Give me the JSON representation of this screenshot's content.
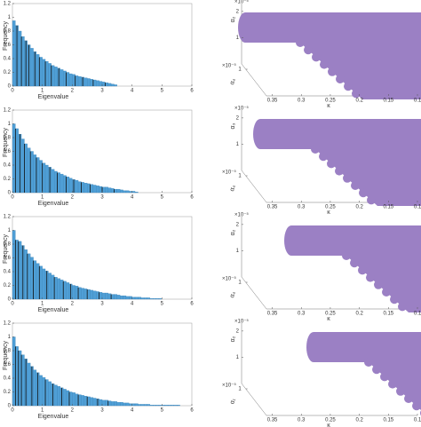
{
  "chart_data": [
    {
      "type": "histogram",
      "xlabel": "Eigenvalue",
      "ylabel": "Frequency",
      "color": "#4f9fd6",
      "bins": [
        0,
        0.1,
        0.2,
        0.3,
        0.4,
        0.5,
        0.6,
        0.7,
        0.8,
        0.9,
        1,
        1.1,
        1.2,
        1.3,
        1.4,
        1.5,
        1.6,
        1.7,
        1.8,
        1.9,
        2,
        2.1,
        2.2,
        2.3,
        2.4,
        2.5,
        2.6,
        2.7,
        2.8,
        2.9,
        3,
        3.1,
        3.2,
        3.3,
        3.4,
        3.5
      ],
      "values": [
        0.95,
        0.88,
        0.8,
        0.72,
        0.66,
        0.6,
        0.55,
        0.5,
        0.46,
        0.42,
        0.39,
        0.36,
        0.33,
        0.3,
        0.28,
        0.26,
        0.24,
        0.22,
        0.2,
        0.18,
        0.17,
        0.15,
        0.14,
        0.13,
        0.12,
        0.11,
        0.1,
        0.09,
        0.08,
        0.07,
        0.06,
        0.05,
        0.04,
        0.03,
        0.02
      ],
      "vlines": [
        0.15,
        0.3,
        0.45,
        0.55,
        0.75,
        0.9,
        1.1,
        1.3,
        1.55,
        1.8,
        2.1,
        2.35,
        2.7,
        3.1
      ],
      "xlim": [
        0,
        6
      ],
      "ylim": [
        0,
        1.2
      ],
      "xticks": [
        0,
        1,
        2,
        3,
        4,
        5,
        6
      ],
      "yticks": [
        0,
        0.2,
        0.4,
        0.6,
        0.8,
        1,
        1.2
      ]
    },
    {
      "type": "scatter3d",
      "xlabel": "κ",
      "ylabel": "α₄",
      "zlabel": "α₂",
      "color": "#9b80c4",
      "xlim": [
        0.1,
        0.36
      ],
      "xticks": [
        0.35,
        0.3,
        0.25,
        0.2,
        0.15,
        0.1
      ],
      "ylim": [
        0,
        1.2
      ],
      "yticks": [
        1
      ],
      "yexp": "×10⁻⁵",
      "zlim": [
        0,
        2.3
      ],
      "zticks": [
        1,
        2
      ],
      "zexp": "×10⁻⁵"
    },
    {
      "type": "histogram",
      "xlabel": "Eigenvalue",
      "ylabel": "Frequency",
      "color": "#4f9fd6",
      "bins": [
        0,
        0.1,
        0.2,
        0.3,
        0.4,
        0.5,
        0.6,
        0.7,
        0.8,
        0.9,
        1,
        1.1,
        1.2,
        1.3,
        1.4,
        1.5,
        1.6,
        1.7,
        1.8,
        1.9,
        2,
        2.1,
        2.2,
        2.3,
        2.4,
        2.5,
        2.6,
        2.7,
        2.8,
        2.9,
        3,
        3.1,
        3.2,
        3.3,
        3.4,
        3.5,
        3.6,
        3.7,
        3.8,
        3.9,
        4,
        4.1,
        4.2
      ],
      "values": [
        1.0,
        0.93,
        0.85,
        0.78,
        0.71,
        0.65,
        0.6,
        0.55,
        0.51,
        0.47,
        0.43,
        0.4,
        0.37,
        0.34,
        0.31,
        0.29,
        0.27,
        0.25,
        0.23,
        0.21,
        0.19,
        0.18,
        0.16,
        0.15,
        0.14,
        0.13,
        0.12,
        0.11,
        0.1,
        0.09,
        0.08,
        0.08,
        0.07,
        0.06,
        0.05,
        0.05,
        0.04,
        0.03,
        0.03,
        0.02,
        0.02,
        0.01
      ],
      "vlines": [
        0.1,
        0.25,
        0.4,
        0.6,
        0.8,
        1.0,
        1.25,
        1.5,
        1.8,
        2.05,
        2.3,
        2.6,
        3.0,
        3.4
      ],
      "xlim": [
        0,
        6
      ],
      "ylim": [
        0,
        1.2
      ],
      "xticks": [
        0,
        1,
        2,
        3,
        4,
        5,
        6
      ],
      "yticks": [
        0,
        0.2,
        0.4,
        0.6,
        0.8,
        1,
        1.2
      ]
    },
    {
      "type": "scatter3d",
      "xlabel": "κ",
      "ylabel": "α₄",
      "zlabel": "α₃",
      "color": "#9b80c4",
      "xlim": [
        0.1,
        0.36
      ],
      "xticks": [
        0.35,
        0.3,
        0.25,
        0.2,
        0.15,
        0.1
      ],
      "ylim": [
        0,
        1.2
      ],
      "yticks": [
        1
      ],
      "yexp": "×10⁻⁵",
      "zlim": [
        0,
        2.3
      ],
      "zticks": [
        1,
        2
      ],
      "zexp": "×10⁻⁵"
    },
    {
      "type": "histogram",
      "xlabel": "Eigenvalue",
      "ylabel": "Frequency",
      "color": "#4f9fd6",
      "bins": [
        0,
        0.1,
        0.2,
        0.3,
        0.4,
        0.5,
        0.6,
        0.7,
        0.8,
        0.9,
        1,
        1.1,
        1.2,
        1.3,
        1.4,
        1.5,
        1.6,
        1.7,
        1.8,
        1.9,
        2,
        2.1,
        2.2,
        2.3,
        2.4,
        2.5,
        2.6,
        2.7,
        2.8,
        2.9,
        3,
        3.1,
        3.2,
        3.3,
        3.4,
        3.5,
        3.6,
        3.7,
        3.8,
        3.9,
        4,
        4.1,
        4.2,
        4.3,
        4.4,
        4.5,
        4.6,
        4.7,
        4.8,
        4.9,
        5
      ],
      "values": [
        1.0,
        0.86,
        0.84,
        0.78,
        0.72,
        0.66,
        0.61,
        0.56,
        0.52,
        0.48,
        0.44,
        0.41,
        0.38,
        0.35,
        0.32,
        0.3,
        0.28,
        0.26,
        0.24,
        0.22,
        0.2,
        0.19,
        0.17,
        0.16,
        0.15,
        0.14,
        0.13,
        0.12,
        0.11,
        0.1,
        0.09,
        0.09,
        0.08,
        0.07,
        0.07,
        0.06,
        0.05,
        0.05,
        0.04,
        0.04,
        0.03,
        0.03,
        0.03,
        0.02,
        0.02,
        0.02,
        0.01,
        0.01,
        0.01,
        0.01
      ],
      "vlines": [
        0.1,
        0.2,
        0.35,
        0.5,
        0.7,
        0.9,
        1.15,
        1.4,
        1.7,
        1.95,
        2.2,
        2.5,
        2.9,
        3.3
      ],
      "xlim": [
        0,
        6
      ],
      "ylim": [
        0,
        1.2
      ],
      "xticks": [
        0,
        1,
        2,
        3,
        4,
        5,
        6
      ],
      "yticks": [
        0,
        0.2,
        0.4,
        0.6,
        0.8,
        1,
        1.2
      ]
    },
    {
      "type": "scatter3d",
      "xlabel": "κ",
      "ylabel": "α₄",
      "zlabel": "α₂",
      "color": "#9b80c4",
      "xlim": [
        0.1,
        0.36
      ],
      "xticks": [
        0.35,
        0.3,
        0.25,
        0.2,
        0.15,
        0.1
      ],
      "ylim": [
        0,
        1.2
      ],
      "yticks": [
        1
      ],
      "yexp": "×10⁻⁵",
      "zlim": [
        0,
        2.3
      ],
      "zticks": [
        1,
        2
      ],
      "zexp": "×10⁻⁵"
    },
    {
      "type": "histogram",
      "xlabel": "Eigenvalue",
      "ylabel": "Frequency",
      "color": "#4f9fd6",
      "bins": [
        0,
        0.1,
        0.2,
        0.3,
        0.4,
        0.5,
        0.6,
        0.7,
        0.8,
        0.9,
        1,
        1.1,
        1.2,
        1.3,
        1.4,
        1.5,
        1.6,
        1.7,
        1.8,
        1.9,
        2,
        2.1,
        2.2,
        2.3,
        2.4,
        2.5,
        2.6,
        2.7,
        2.8,
        2.9,
        3,
        3.1,
        3.2,
        3.3,
        3.4,
        3.5,
        3.6,
        3.7,
        3.8,
        3.9,
        4,
        4.1,
        4.2,
        4.3,
        4.4,
        4.5,
        4.6,
        4.7,
        4.8,
        4.9,
        5,
        5.1,
        5.2,
        5.3,
        5.4,
        5.5,
        5.6
      ],
      "values": [
        1.0,
        0.86,
        0.8,
        0.74,
        0.68,
        0.62,
        0.57,
        0.52,
        0.48,
        0.44,
        0.41,
        0.38,
        0.35,
        0.32,
        0.3,
        0.28,
        0.26,
        0.24,
        0.22,
        0.2,
        0.19,
        0.17,
        0.16,
        0.15,
        0.14,
        0.13,
        0.12,
        0.11,
        0.1,
        0.09,
        0.08,
        0.08,
        0.07,
        0.06,
        0.06,
        0.05,
        0.05,
        0.04,
        0.04,
        0.03,
        0.03,
        0.03,
        0.02,
        0.02,
        0.02,
        0.02,
        0.01,
        0.01,
        0.01,
        0.01,
        0.01,
        0.01,
        0.01,
        0.01,
        0.01,
        0.01
      ],
      "vlines": [
        0.1,
        0.2,
        0.3,
        0.45,
        0.65,
        0.85,
        1.1,
        1.35,
        1.65,
        1.9,
        2.2,
        2.5,
        2.85,
        3.2
      ],
      "xlim": [
        0,
        6
      ],
      "ylim": [
        0,
        1.2
      ],
      "xticks": [
        0,
        1,
        2,
        3,
        4,
        5,
        6
      ],
      "yticks": [
        0,
        0.2,
        0.4,
        0.6,
        0.8,
        1,
        1.2
      ]
    },
    {
      "type": "scatter3d",
      "xlabel": "κ",
      "ylabel": "α₁",
      "zlabel": "α₂",
      "color": "#9b80c4",
      "xlim": [
        0.1,
        0.36
      ],
      "xticks": [
        0.35,
        0.3,
        0.25,
        0.2,
        0.15,
        0.1
      ],
      "ylim": [
        0,
        1.2
      ],
      "yticks": [
        1
      ],
      "yexp": "×10⁻⁵",
      "zlim": [
        0,
        2.3
      ],
      "zticks": [
        1,
        2
      ],
      "zexp": "×10⁻⁵"
    }
  ]
}
